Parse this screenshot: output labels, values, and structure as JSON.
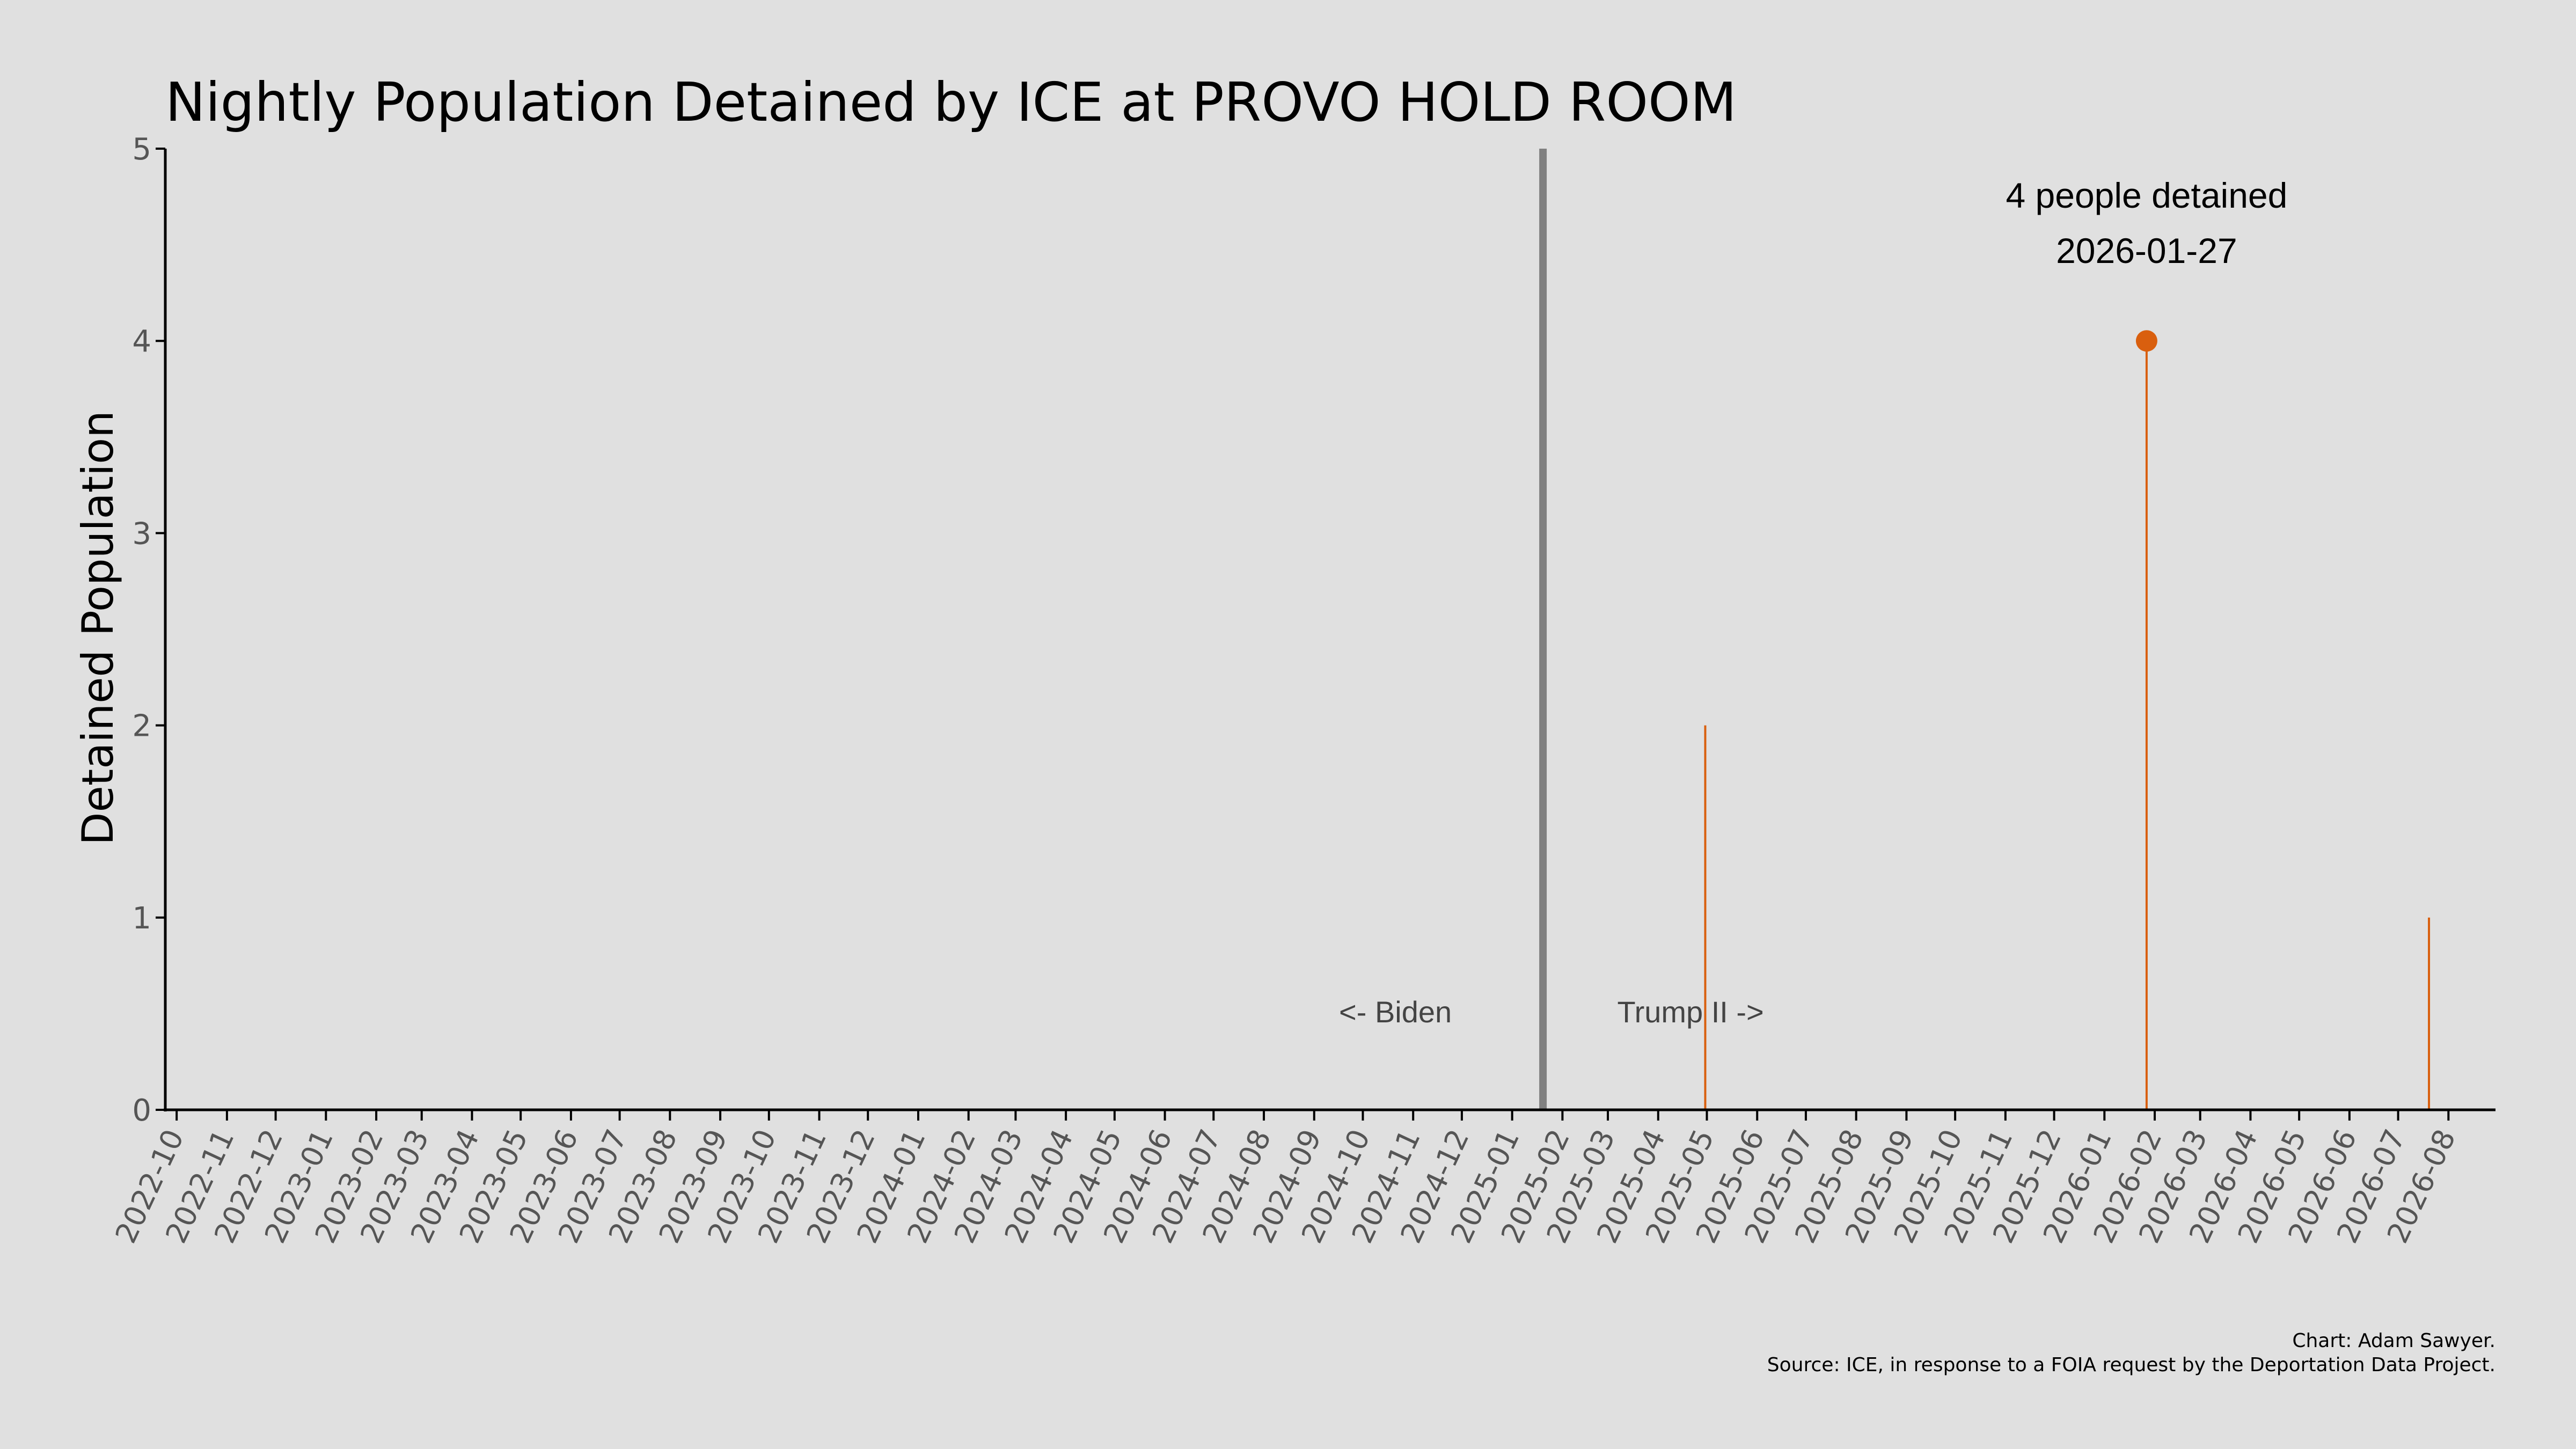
{
  "chart_data": {
    "type": "line",
    "title": "Nightly Population Detained by ICE at PROVO HOLD ROOM",
    "ylabel": "Detained Population",
    "xlabel": "",
    "ylim": [
      0,
      5
    ],
    "xlim": [
      "2022-09-24",
      "2026-08-30"
    ],
    "yticks": [
      0,
      1,
      2,
      3,
      4,
      5
    ],
    "xticks": [
      "2022-10",
      "2022-11",
      "2022-12",
      "2023-01",
      "2023-02",
      "2023-03",
      "2023-04",
      "2023-05",
      "2023-06",
      "2023-07",
      "2023-08",
      "2023-09",
      "2023-10",
      "2023-11",
      "2023-12",
      "2024-01",
      "2024-02",
      "2024-03",
      "2024-04",
      "2024-05",
      "2024-06",
      "2024-07",
      "2024-08",
      "2024-09",
      "2024-10",
      "2024-11",
      "2024-12",
      "2025-01",
      "2025-02",
      "2025-03",
      "2025-04",
      "2025-05",
      "2025-06",
      "2025-07",
      "2025-08",
      "2025-09",
      "2025-10",
      "2025-11",
      "2025-12",
      "2026-01",
      "2026-02",
      "2026-03",
      "2026-04",
      "2026-05",
      "2026-06",
      "2026-07",
      "2026-08"
    ],
    "series": [
      {
        "color": "#d95f0e",
        "points": [
          {
            "date": "2025-04-30",
            "value": 2
          },
          {
            "date": "2026-01-27",
            "value": 4
          },
          {
            "date": "2026-07-20",
            "value": 1
          }
        ]
      }
    ],
    "grid": false,
    "divider": {
      "date": "2025-01-20",
      "color": "#808080"
    },
    "era_labels": {
      "left": "<- Biden",
      "right": "Trump II ->"
    },
    "highlight": {
      "date": "2026-01-27",
      "value": 4,
      "line1": "4 people detained",
      "line2": "2026-01-27"
    },
    "credit_line1": "Chart: Adam Sawyer.",
    "credit_line2": "Source: ICE, in response to a FOIA request by the Deportation Data Project."
  }
}
